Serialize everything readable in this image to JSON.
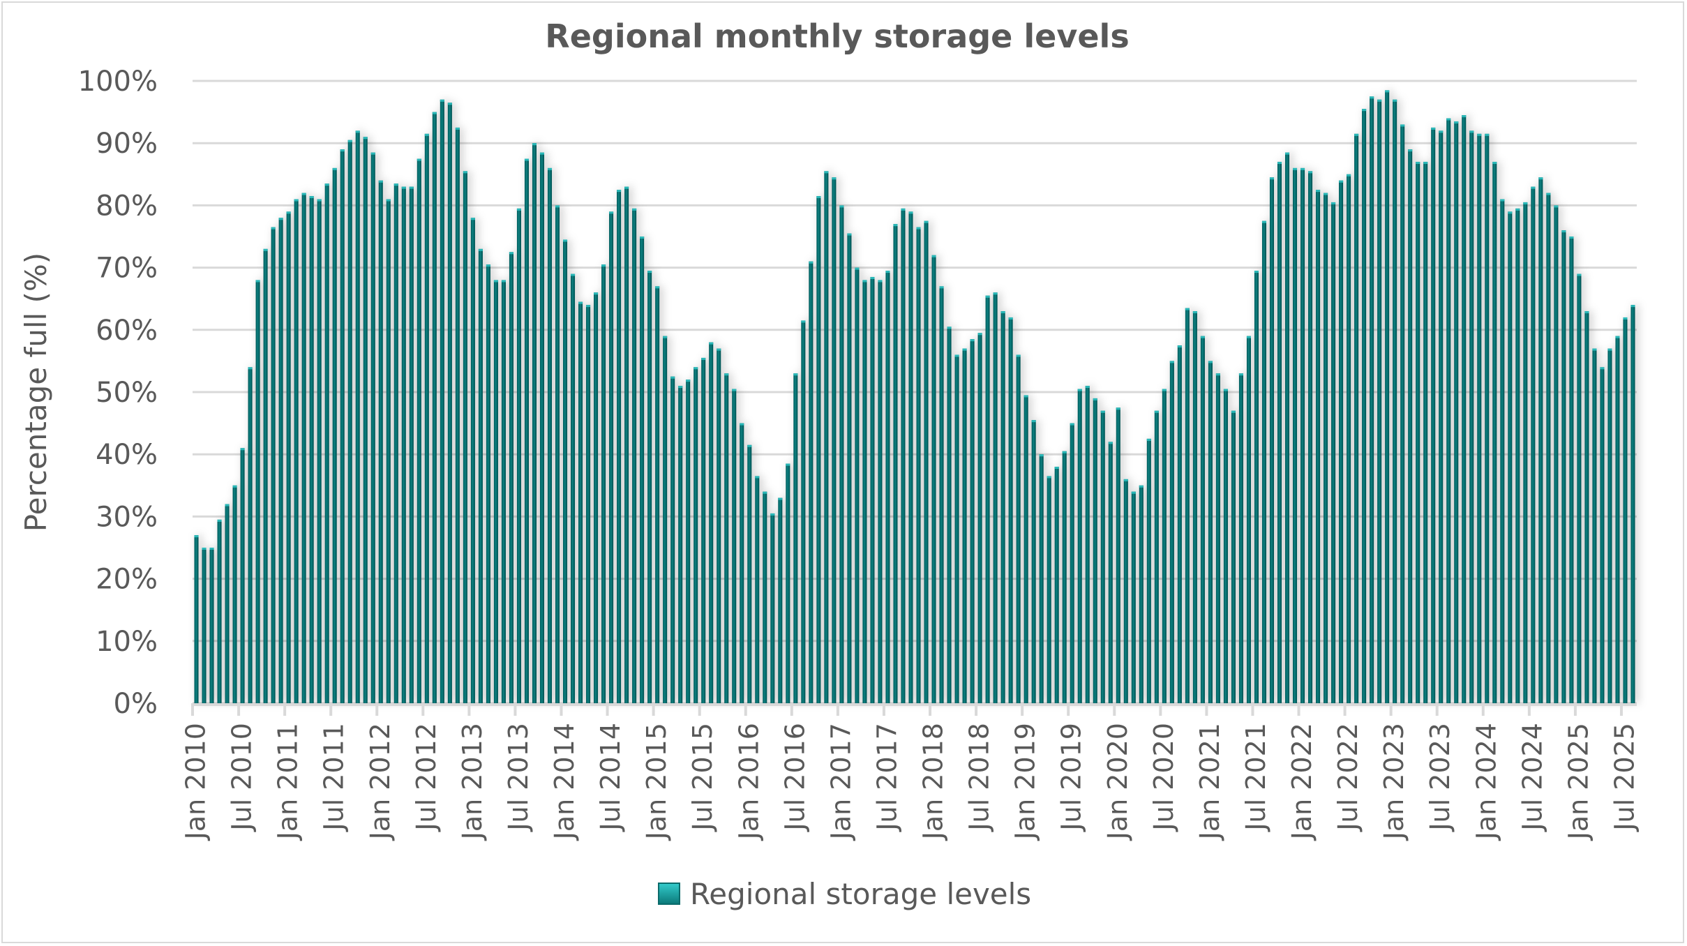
{
  "chart_data": {
    "type": "bar",
    "title": "Regional monthly storage levels",
    "xlabel": "",
    "ylabel": "Percentage full (%)",
    "ylim": [
      0,
      100
    ],
    "y_ticks": [
      "0%",
      "10%",
      "20%",
      "30%",
      "40%",
      "50%",
      "60%",
      "70%",
      "80%",
      "90%",
      "100%"
    ],
    "y_tick_values": [
      0,
      10,
      20,
      30,
      40,
      50,
      60,
      70,
      80,
      90,
      100
    ],
    "grid": true,
    "legend_position": "bottom",
    "start_month": "2010-01",
    "x_tick_labels": [
      "Jan 2010",
      "Jul 2010",
      "Jan 2011",
      "Jul 2011",
      "Jan 2012",
      "Jul 2012",
      "Jan 2013",
      "Jul 2013",
      "Jan 2014",
      "Jul 2014",
      "Jan 2015",
      "Jul 2015",
      "Jan 2016",
      "Jul 2016",
      "Jan 2017",
      "Jul 2017",
      "Jan 2018",
      "Jul 2018",
      "Jan 2019",
      "Jul 2019",
      "Jan 2020",
      "Jul 2020",
      "Jan 2021",
      "Jul 2021",
      "Jan 2022",
      "Jul 2022",
      "Jan 2023",
      "Jul 2023",
      "Jan 2024",
      "Jul 2024",
      "Jan 2025",
      "Jul 2025"
    ],
    "series": [
      {
        "name": "Regional storage levels",
        "color": "#007070",
        "values": [
          27,
          25,
          25,
          29.5,
          32,
          35,
          41,
          54,
          68,
          73,
          76.5,
          78,
          79,
          81,
          82,
          81.5,
          81,
          83.5,
          86,
          89,
          90.5,
          92,
          91,
          88.5,
          84,
          81,
          83.5,
          83,
          83,
          87.5,
          91.5,
          95,
          97,
          96.5,
          92.5,
          85.5,
          78,
          73,
          70.5,
          68,
          68,
          72.5,
          79.5,
          87.5,
          90,
          88.5,
          86,
          80,
          74.5,
          69,
          64.5,
          64,
          66,
          70.5,
          79,
          82.5,
          83,
          79.5,
          75,
          69.5,
          67,
          59,
          52.5,
          51,
          52,
          54,
          55.5,
          58,
          57,
          53,
          50.5,
          45,
          41.5,
          36.5,
          34,
          30.5,
          33,
          38.5,
          53,
          61.5,
          71,
          81.5,
          85.5,
          84.5,
          80,
          75.5,
          70,
          68,
          68.5,
          68,
          69.5,
          77,
          79.5,
          79,
          76.5,
          77.5,
          72,
          67,
          60.5,
          56,
          57,
          58.5,
          59.5,
          65.5,
          66,
          63,
          62,
          56,
          49.5,
          45.5,
          40,
          36.5,
          38,
          40.5,
          45,
          50.5,
          51,
          49,
          47,
          42,
          47.5,
          36,
          34,
          35,
          42.5,
          47,
          50.5,
          55,
          57.5,
          63.5,
          63,
          59,
          55,
          53,
          50.5,
          47,
          53,
          59,
          69.5,
          77.5,
          84.5,
          87,
          88.5,
          86,
          86,
          85.5,
          82.5,
          82,
          80.5,
          84,
          85,
          91.5,
          95.5,
          97.5,
          97,
          98.5,
          97,
          93,
          89,
          87,
          87,
          92.5,
          92,
          94,
          93.5,
          94.5,
          92,
          91.5,
          91.5,
          87,
          81,
          79,
          79.5,
          80.5,
          83,
          84.5,
          82,
          80,
          76,
          75,
          69,
          63,
          57,
          54,
          57,
          59,
          62,
          64
        ]
      }
    ]
  }
}
